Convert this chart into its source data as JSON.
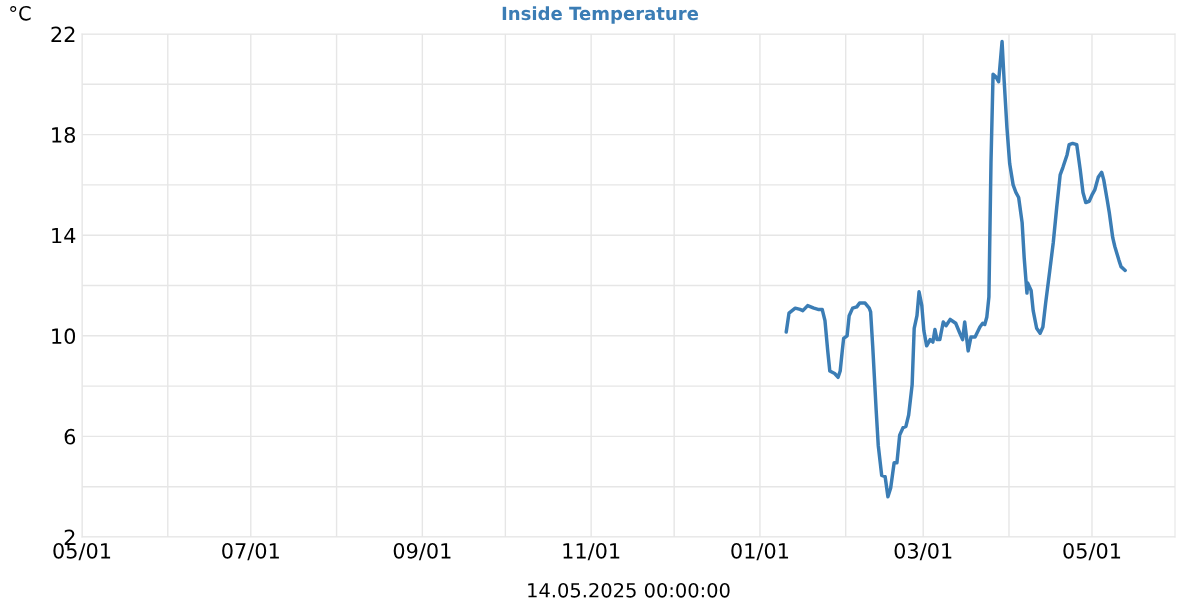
{
  "chart_data": {
    "type": "line",
    "title": "Inside Temperature",
    "xlabel": "14.05.2025 00:00:00",
    "ylabel": "°C",
    "xlim": [
      "2024-05-01",
      "2025-05-31"
    ],
    "xticks": [
      {
        "value": "2024-05-01",
        "label": "05/01"
      },
      {
        "value": "2024-06-01",
        "label": null
      },
      {
        "value": "2024-07-01",
        "label": "07/01"
      },
      {
        "value": "2024-08-01",
        "label": null
      },
      {
        "value": "2024-09-01",
        "label": "09/01"
      },
      {
        "value": "2024-10-01",
        "label": null
      },
      {
        "value": "2024-11-01",
        "label": "11/01"
      },
      {
        "value": "2024-12-01",
        "label": null
      },
      {
        "value": "2025-01-01",
        "label": "01/01"
      },
      {
        "value": "2025-02-01",
        "label": null
      },
      {
        "value": "2025-03-01",
        "label": "03/01"
      },
      {
        "value": "2025-04-01",
        "label": null
      },
      {
        "value": "2025-05-01",
        "label": "05/01"
      }
    ],
    "ylim": [
      2,
      22
    ],
    "yticks": [
      2,
      {
        "value": 4,
        "label": null
      },
      6,
      {
        "value": 8,
        "label": null
      },
      10,
      {
        "value": 12,
        "label": null
      },
      14,
      {
        "value": 16,
        "label": null
      },
      18,
      {
        "value": 20,
        "label": null
      },
      22
    ],
    "grid": true,
    "marker": "none",
    "line_style": "solid",
    "series": [
      {
        "color": "#3b7db5",
        "x": [
          "2025-01-10T12:00",
          "2025-01-11T12:00",
          "2025-01-13T18:00",
          "2025-01-15T12:00",
          "2025-01-16T12:00",
          "2025-01-18T06:00",
          "2025-01-20T12:00",
          "2025-01-22",
          "2025-01-23T12:00",
          "2025-01-24T12:00",
          "2025-01-25T12:00",
          "2025-01-26T06:00",
          "2025-01-28",
          "2025-01-29T06:00",
          "2025-01-30",
          "2025-01-30T18:00",
          "2025-01-31T06:00",
          "2025-02-01T12:00",
          "2025-02-02T06:00",
          "2025-02-03T12:00",
          "2025-02-05",
          "2025-02-06",
          "2025-02-08",
          "2025-02-09T12:00",
          "2025-02-10",
          "2025-02-10T18:00",
          "2025-02-12",
          "2025-02-12T18:00",
          "2025-02-14",
          "2025-02-15T06:00",
          "2025-02-16T06:00",
          "2025-02-17T06:00",
          "2025-02-18T12:00",
          "2025-02-19T12:00",
          "2025-02-20T12:00",
          "2025-02-21T18:00",
          "2025-02-22T18:00",
          "2025-02-23T18:00",
          "2025-02-25",
          "2025-02-25T18:00",
          "2025-02-26T18:00",
          "2025-02-27T12:00",
          "2025-02-28T12:00",
          "2025-03-01T06:00",
          "2025-03-02T06:00",
          "2025-03-03T12:00",
          "2025-03-04T12:00",
          "2025-03-05T06:00",
          "2025-03-06",
          "2025-03-07",
          "2025-03-08T06:00",
          "2025-03-09T06:00",
          "2025-03-10T18:00",
          "2025-03-12T18:00",
          "2025-03-14T06:00",
          "2025-03-15T06:00",
          "2025-03-16",
          "2025-03-17T06:00",
          "2025-03-18T06:00",
          "2025-03-19T18:00",
          "2025-03-21T12:00",
          "2025-03-22T12:00",
          "2025-03-23T06:00",
          "2025-03-24",
          "2025-03-24T18:00",
          "2025-03-25T12:00",
          "2025-03-26T06:00",
          "2025-03-27T06:00",
          "2025-03-28T06:00",
          "2025-03-29T12:00",
          "2025-03-30T06:00",
          "2025-03-31T06:00",
          "2025-04-01T06:00",
          "2025-04-02T12:00",
          "2025-04-03T12:00",
          "2025-04-04T12:00",
          "2025-04-05T18:00",
          "2025-04-06T12:00",
          "2025-04-07T12:00",
          "2025-04-07T18:00",
          "2025-04-09",
          "2025-04-09T18:00",
          "2025-04-11",
          "2025-04-12T06:00",
          "2025-04-13T06:00",
          "2025-04-14T06:00",
          "2025-04-15T18:00",
          "2025-04-17",
          "2025-04-18T06:00",
          "2025-04-19T12:00",
          "2025-04-20T12:00",
          "2025-04-22",
          "2025-04-22T18:00",
          "2025-04-24",
          "2025-04-25T12:00",
          "2025-04-26T18:00",
          "2025-04-27T18:00",
          "2025-04-28T18:00",
          "2025-04-30",
          "2025-05-01",
          "2025-05-02",
          "2025-05-03T06:00",
          "2025-05-04T12:00",
          "2025-05-05T06:00",
          "2025-05-06T12:00",
          "2025-05-07T06:00",
          "2025-05-08T12:00",
          "2025-05-09T06:00",
          "2025-05-10T18:00",
          "2025-05-11T12:00",
          "2025-05-13"
        ],
        "values": [
          10.15,
          10.9,
          11.1,
          11.05,
          11.0,
          11.2,
          11.1,
          11.05,
          11.05,
          10.6,
          9.4,
          8.6,
          8.5,
          8.35,
          8.6,
          9.4,
          9.9,
          10.0,
          10.8,
          11.1,
          11.15,
          11.3,
          11.3,
          11.1,
          10.95,
          9.6,
          7.05,
          5.65,
          4.45,
          4.4,
          3.6,
          3.95,
          4.95,
          4.95,
          6.05,
          6.35,
          6.4,
          6.85,
          8.05,
          10.3,
          10.8,
          11.75,
          11.2,
          10.2,
          9.6,
          9.85,
          9.75,
          10.25,
          9.85,
          9.85,
          10.55,
          10.4,
          10.65,
          10.5,
          10.1,
          9.85,
          10.55,
          9.4,
          9.95,
          9.95,
          10.35,
          10.5,
          10.45,
          10.75,
          11.55,
          16.9,
          20.4,
          20.3,
          20.1,
          21.7,
          20.15,
          18.3,
          16.85,
          16.0,
          15.7,
          15.5,
          14.5,
          13.1,
          11.7,
          12.1,
          11.8,
          11.0,
          10.3,
          10.1,
          10.35,
          11.3,
          12.6,
          13.7,
          15.1,
          16.4,
          16.7,
          17.2,
          17.6,
          17.65,
          17.6,
          16.6,
          15.7,
          15.3,
          15.35,
          15.6,
          15.8,
          16.3,
          16.5,
          16.2,
          15.4,
          14.9,
          13.9,
          13.55,
          13.0,
          12.75,
          12.6
        ]
      }
    ]
  }
}
